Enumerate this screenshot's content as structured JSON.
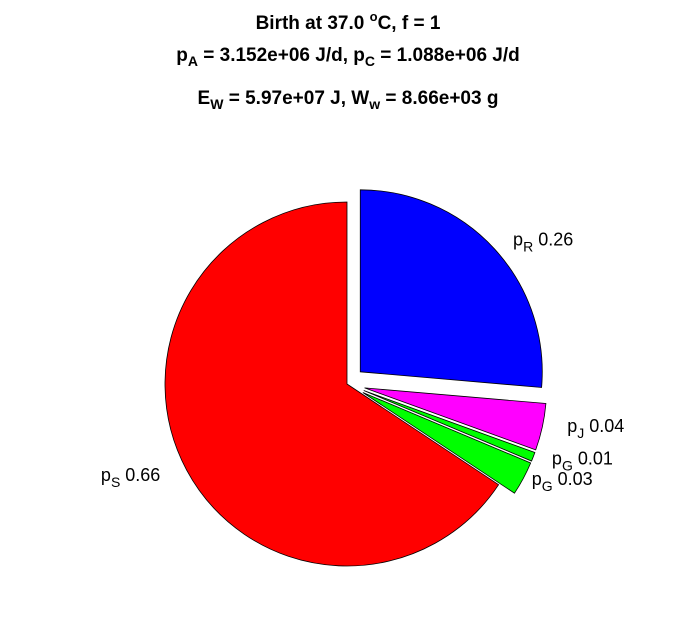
{
  "title": {
    "line1": {
      "pre": "Birth at 37.0 ",
      "sup": "o",
      "post": "C, f = 1"
    },
    "line2": {
      "a": "p",
      "a_sub": "A",
      "a_val": " = 3.152e+06 J/d, ",
      "c": "p",
      "c_sub": "C",
      "c_val": " = 1.088e+06 J/d"
    },
    "line3": {
      "e": "E",
      "e_sub": "W",
      "e_val": " = 5.97e+07 J, ",
      "w": "W",
      "w_sub": "w",
      "w_val": " = 8.66e+03 g"
    }
  },
  "chart_data": {
    "type": "pie",
    "title": "Birth at 37.0 °C, f = 1 | p_A = 3.152e+06 J/d, p_C = 1.088e+06 J/d | E_W = 5.97e+07 J, W_w = 8.66e+03 g",
    "slices": [
      {
        "name": "p",
        "sub": "R",
        "label": "0.26",
        "value": 0.2637,
        "color": "#0000ff",
        "exploded": true
      },
      {
        "name": "p",
        "sub": "J",
        "label": "0.04",
        "value": 0.0416,
        "color": "#ff00ff",
        "exploded": true
      },
      {
        "name": "p",
        "sub": "G",
        "label": "0.01",
        "value": 0.008,
        "color": "#00ff00",
        "exploded": true
      },
      {
        "name": "p",
        "sub": "G",
        "label": "0.03",
        "value": 0.03,
        "color": "#00ff00",
        "exploded": true
      },
      {
        "name": "p",
        "sub": "S",
        "label": "0.66",
        "value": 0.6567,
        "color": "#ff0000",
        "exploded": false
      }
    ],
    "legend": "none"
  }
}
